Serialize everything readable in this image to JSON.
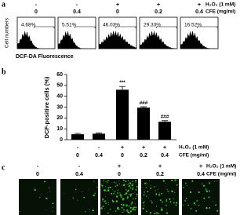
{
  "panel_a": {
    "label": "a",
    "h2o2": [
      "-",
      "-",
      "+",
      "+",
      "+"
    ],
    "h2o2_label": "H₂O₂ (1 mM)",
    "cfe": [
      "0",
      "0.4",
      "0",
      "0.2",
      "0.4"
    ],
    "cfe_label": "CFE (mg/ml)",
    "y_label": "Cell numbers",
    "x_label": "DCF-DA Fluorescence",
    "gates": [
      "4.68%",
      "5.51%",
      "46.03%",
      "29.33%",
      "16.52%"
    ]
  },
  "chart_data": {
    "type": "bar",
    "panel_label": "b",
    "y_label": "DCF-positive cells (%)",
    "values": [
      5,
      5.5,
      46,
      29.5,
      16.5
    ],
    "errors": [
      0.8,
      0.6,
      3,
      0.8,
      1
    ],
    "annotations": [
      null,
      null,
      "***",
      "###",
      "###"
    ],
    "ylim": [
      0,
      60
    ],
    "yticks": [
      0,
      10,
      20,
      30,
      40,
      50,
      60
    ],
    "color": "#000000",
    "h2o2": [
      "-",
      "-",
      "+",
      "+",
      "+"
    ],
    "h2o2_label": "H₂O₂ (1 mM)",
    "cfe": [
      "0",
      "0.4",
      "0",
      "0.2",
      "0.4"
    ],
    "cfe_label": "CFE (mg/ml)"
  },
  "panel_c": {
    "label": "c",
    "h2o2": [
      "-",
      "-",
      "+",
      "+",
      "+"
    ],
    "h2o2_label": "H₂O₂ (1 mM)",
    "cfe": [
      "0",
      "0.4",
      "0",
      "0.2",
      "0.4"
    ],
    "cfe_label": "CFE (mg/ml)"
  }
}
